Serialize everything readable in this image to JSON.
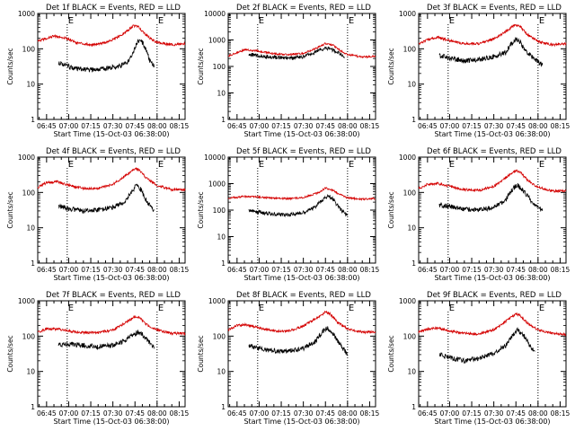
{
  "colors": {
    "events": "#000000",
    "lld": "#d40000",
    "axis": "#000000",
    "background": "#ffffff"
  },
  "chart_data": [
    {
      "type": "line",
      "title": "Det 1f BLACK = Events, RED = LLD",
      "xlabel": "Start Time (15-Oct-03 06:38:00)",
      "ylabel": "Counts/sec",
      "xlim": [
        "06:39",
        "08:19"
      ],
      "ylim": [
        1,
        1000
      ],
      "y_scale": "log",
      "x_ticks": [
        "06:45",
        "07:00",
        "07:15",
        "07:30",
        "07:45",
        "08:00",
        "08:15"
      ],
      "y_ticks": [
        "1",
        "10",
        "100",
        "1000"
      ],
      "markers": [
        {
          "label": "E",
          "at": "06:59",
          "style": "dotted"
        },
        {
          "label": "E",
          "at": "08:00",
          "style": "dotted"
        }
      ],
      "series": [
        {
          "name": "Events",
          "x": [
            "06:53",
            "07:00",
            "07:05",
            "07:15",
            "07:25",
            "07:30",
            "07:35",
            "07:40",
            "07:43",
            "07:45",
            "07:47",
            "07:50",
            "07:53",
            "07:55",
            "07:58"
          ],
          "y": [
            42,
            32,
            27,
            25,
            28,
            30,
            33,
            42,
            70,
            110,
            170,
            150,
            90,
            45,
            35
          ]
        },
        {
          "name": "LLD",
          "x": [
            "06:39",
            "06:45",
            "06:50",
            "07:00",
            "07:05",
            "07:15",
            "07:25",
            "07:30",
            "07:35",
            "07:40",
            "07:44",
            "07:47",
            "07:50",
            "07:55",
            "08:00",
            "08:10",
            "08:19"
          ],
          "y": [
            160,
            200,
            230,
            190,
            150,
            130,
            150,
            180,
            230,
            330,
            450,
            430,
            320,
            200,
            150,
            130,
            140
          ]
        }
      ]
    },
    {
      "type": "line",
      "title": "Det 2f BLACK = Events, RED = LLD",
      "xlabel": "Start Time (15-Oct-03 06:38:00)",
      "ylabel": "Counts/sec",
      "xlim": [
        "06:39",
        "08:19"
      ],
      "ylim": [
        1,
        10000
      ],
      "y_scale": "log",
      "x_ticks": [
        "06:45",
        "07:00",
        "07:15",
        "07:30",
        "07:45",
        "08:00",
        "08:15"
      ],
      "y_ticks": [
        "1",
        "10",
        "100",
        "1000",
        "10000"
      ],
      "markers": [
        {
          "label": "E",
          "at": "06:59",
          "style": "dotted"
        },
        {
          "label": "E",
          "at": "08:00",
          "style": "dotted"
        }
      ],
      "series": [
        {
          "name": "Events",
          "x": [
            "06:53",
            "07:00",
            "07:10",
            "07:20",
            "07:30",
            "07:40",
            "07:45",
            "07:50",
            "07:55",
            "07:58"
          ],
          "y": [
            290,
            250,
            220,
            200,
            230,
            380,
            500,
            420,
            290,
            240
          ]
        },
        {
          "name": "LLD",
          "x": [
            "06:39",
            "06:50",
            "07:00",
            "07:10",
            "07:20",
            "07:30",
            "07:40",
            "07:45",
            "07:50",
            "07:55",
            "08:00",
            "08:10",
            "08:19"
          ],
          "y": [
            240,
            430,
            380,
            300,
            280,
            310,
            520,
            740,
            650,
            400,
            280,
            230,
            240
          ]
        }
      ]
    },
    {
      "type": "line",
      "title": "Det 3f BLACK = Events, RED = LLD",
      "xlabel": "Start Time (15-Oct-03 06:38:00)",
      "ylabel": "Counts/sec",
      "xlim": [
        "06:39",
        "08:19"
      ],
      "ylim": [
        1,
        1000
      ],
      "y_scale": "log",
      "x_ticks": [
        "06:45",
        "07:00",
        "07:15",
        "07:30",
        "07:45",
        "08:00",
        "08:15"
      ],
      "y_ticks": [
        "1",
        "10",
        "100",
        "1000"
      ],
      "markers": [
        {
          "label": "E",
          "at": "06:59",
          "style": "dotted"
        },
        {
          "label": "E",
          "at": "08:00",
          "style": "dotted"
        }
      ],
      "series": [
        {
          "name": "Events",
          "x": [
            "06:53",
            "07:00",
            "07:10",
            "07:20",
            "07:30",
            "07:38",
            "07:42",
            "07:45",
            "07:48",
            "07:52",
            "07:58",
            "08:03"
          ],
          "y": [
            65,
            55,
            45,
            50,
            60,
            80,
            140,
            190,
            150,
            80,
            50,
            35
          ]
        },
        {
          "name": "LLD",
          "x": [
            "06:39",
            "06:45",
            "06:52",
            "07:00",
            "07:10",
            "07:20",
            "07:30",
            "07:38",
            "07:44",
            "07:48",
            "07:53",
            "08:00",
            "08:10",
            "08:19"
          ],
          "y": [
            140,
            180,
            210,
            170,
            140,
            140,
            190,
            300,
            470,
            420,
            250,
            160,
            130,
            140
          ]
        }
      ]
    },
    {
      "type": "line",
      "title": "Det 4f BLACK = Events, RED = LLD",
      "xlabel": "Start Time (15-Oct-03 06:38:00)",
      "ylabel": "Counts/sec",
      "xlim": [
        "06:39",
        "08:19"
      ],
      "ylim": [
        1,
        1000
      ],
      "y_scale": "log",
      "x_ticks": [
        "06:45",
        "07:00",
        "07:15",
        "07:30",
        "07:45",
        "08:00",
        "08:15"
      ],
      "y_ticks": [
        "1",
        "10",
        "100",
        "1000"
      ],
      "markers": [
        {
          "label": "E",
          "at": "06:59",
          "style": "dotted"
        },
        {
          "label": "E",
          "at": "08:00",
          "style": "dotted"
        }
      ],
      "series": [
        {
          "name": "Events",
          "x": [
            "06:53",
            "07:00",
            "07:10",
            "07:20",
            "07:30",
            "07:38",
            "07:43",
            "07:46",
            "07:49",
            "07:53",
            "07:58"
          ],
          "y": [
            42,
            35,
            30,
            32,
            38,
            55,
            110,
            160,
            120,
            55,
            30
          ]
        },
        {
          "name": "LLD",
          "x": [
            "06:39",
            "06:45",
            "06:52",
            "07:00",
            "07:10",
            "07:20",
            "07:30",
            "07:40",
            "07:45",
            "07:48",
            "07:53",
            "08:00",
            "08:10",
            "08:19"
          ],
          "y": [
            140,
            190,
            200,
            160,
            130,
            130,
            170,
            330,
            480,
            430,
            250,
            160,
            120,
            120
          ]
        }
      ]
    },
    {
      "type": "line",
      "title": "Det 5f BLACK = Events, RED = LLD",
      "xlabel": "Start Time (15-Oct-03 06:38:00)",
      "ylabel": "Counts/sec",
      "xlim": [
        "06:39",
        "08:19"
      ],
      "ylim": [
        1,
        10000
      ],
      "y_scale": "log",
      "x_ticks": [
        "06:45",
        "07:00",
        "07:15",
        "07:30",
        "07:45",
        "08:00",
        "08:15"
      ],
      "y_ticks": [
        "1",
        "10",
        "100",
        "1000",
        "10000"
      ],
      "markers": [
        {
          "label": "E",
          "at": "06:59",
          "style": "dotted"
        },
        {
          "label": "E",
          "at": "08:00",
          "style": "dotted"
        }
      ],
      "series": [
        {
          "name": "Events",
          "x": [
            "06:53",
            "07:00",
            "07:10",
            "07:20",
            "07:30",
            "07:38",
            "07:43",
            "07:47",
            "07:50",
            "07:55",
            "08:00"
          ],
          "y": [
            95,
            85,
            70,
            65,
            80,
            130,
            250,
            330,
            260,
            110,
            60
          ]
        },
        {
          "name": "LLD",
          "x": [
            "06:39",
            "06:50",
            "07:00",
            "07:10",
            "07:20",
            "07:30",
            "07:40",
            "07:45",
            "07:50",
            "07:55",
            "08:00",
            "08:10",
            "08:19"
          ],
          "y": [
            280,
            330,
            310,
            280,
            270,
            300,
            450,
            680,
            560,
            380,
            290,
            260,
            270
          ]
        }
      ]
    },
    {
      "type": "line",
      "title": "Det 6f BLACK = Events, RED = LLD",
      "xlabel": "Start Time (15-Oct-03 06:38:00)",
      "ylabel": "Counts/sec",
      "xlim": [
        "06:39",
        "08:19"
      ],
      "ylim": [
        1,
        1000
      ],
      "y_scale": "log",
      "x_ticks": [
        "06:45",
        "07:00",
        "07:15",
        "07:30",
        "07:45",
        "08:00",
        "08:15"
      ],
      "y_ticks": [
        "1",
        "10",
        "100",
        "1000"
      ],
      "markers": [
        {
          "label": "E",
          "at": "06:59",
          "style": "dotted"
        },
        {
          "label": "E",
          "at": "08:00",
          "style": "dotted"
        }
      ],
      "series": [
        {
          "name": "Events",
          "x": [
            "06:53",
            "07:00",
            "07:10",
            "07:20",
            "07:30",
            "07:38",
            "07:43",
            "07:46",
            "07:50",
            "07:55",
            "08:00",
            "08:03"
          ],
          "y": [
            45,
            40,
            33,
            32,
            38,
            60,
            130,
            160,
            110,
            60,
            40,
            30
          ]
        },
        {
          "name": "LLD",
          "x": [
            "06:39",
            "06:45",
            "06:52",
            "07:00",
            "07:10",
            "07:20",
            "07:30",
            "07:40",
            "07:45",
            "07:48",
            "07:53",
            "08:00",
            "08:10",
            "08:19"
          ],
          "y": [
            130,
            170,
            180,
            150,
            120,
            115,
            150,
            300,
            420,
            370,
            220,
            140,
            110,
            110
          ]
        }
      ]
    },
    {
      "type": "line",
      "title": "Det 7f BLACK = Events, RED = LLD",
      "xlabel": "Start Time (15-Oct-03 06:38:00)",
      "ylabel": "Counts/sec",
      "xlim": [
        "06:39",
        "08:19"
      ],
      "ylim": [
        1,
        1000
      ],
      "y_scale": "log",
      "x_ticks": [
        "06:45",
        "07:00",
        "07:15",
        "07:30",
        "07:45",
        "08:00",
        "08:15"
      ],
      "y_ticks": [
        "1",
        "10",
        "100",
        "1000"
      ],
      "markers": [
        {
          "label": "E",
          "at": "06:59",
          "style": "dotted"
        },
        {
          "label": "E",
          "at": "08:00",
          "style": "dotted"
        }
      ],
      "series": [
        {
          "name": "Events",
          "x": [
            "06:53",
            "07:00",
            "07:10",
            "07:20",
            "07:30",
            "07:38",
            "07:43",
            "07:47",
            "07:50",
            "07:55",
            "07:58"
          ],
          "y": [
            58,
            60,
            55,
            50,
            55,
            75,
            110,
            130,
            110,
            65,
            50
          ]
        },
        {
          "name": "LLD",
          "x": [
            "06:39",
            "06:45",
            "06:52",
            "07:00",
            "07:10",
            "07:20",
            "07:30",
            "07:40",
            "07:45",
            "07:48",
            "07:53",
            "08:00",
            "08:10",
            "08:19"
          ],
          "y": [
            130,
            160,
            160,
            140,
            125,
            125,
            150,
            260,
            360,
            330,
            210,
            150,
            120,
            120
          ]
        }
      ]
    },
    {
      "type": "line",
      "title": "Det 8f BLACK = Events, RED = LLD",
      "xlabel": "Start Time (15-Oct-03 06:38:00)",
      "ylabel": "Counts/sec",
      "xlim": [
        "06:39",
        "08:19"
      ],
      "ylim": [
        1,
        1000
      ],
      "y_scale": "log",
      "x_ticks": [
        "06:45",
        "07:00",
        "07:15",
        "07:30",
        "07:45",
        "08:00",
        "08:15"
      ],
      "y_ticks": [
        "1",
        "10",
        "100",
        "1000"
      ],
      "markers": [
        {
          "label": "E",
          "at": "06:59",
          "style": "dotted"
        },
        {
          "label": "E",
          "at": "08:00",
          "style": "dotted"
        }
      ],
      "series": [
        {
          "name": "Events",
          "x": [
            "06:53",
            "07:00",
            "07:10",
            "07:20",
            "07:30",
            "07:38",
            "07:43",
            "07:46",
            "07:50",
            "07:55",
            "08:00"
          ],
          "y": [
            55,
            45,
            38,
            38,
            45,
            70,
            130,
            170,
            120,
            55,
            30
          ]
        },
        {
          "name": "LLD",
          "x": [
            "06:39",
            "06:45",
            "06:52",
            "07:00",
            "07:10",
            "07:20",
            "07:30",
            "07:40",
            "07:45",
            "07:48",
            "07:53",
            "08:00",
            "08:10",
            "08:19"
          ],
          "y": [
            150,
            200,
            210,
            170,
            140,
            140,
            190,
            350,
            480,
            430,
            250,
            160,
            130,
            130
          ]
        }
      ]
    },
    {
      "type": "line",
      "title": "Det 9f BLACK = Events, RED = LLD",
      "xlabel": "Start Time (15-Oct-03 06:38:00)",
      "ylabel": "Counts/sec",
      "xlim": [
        "06:39",
        "08:19"
      ],
      "ylim": [
        1,
        1000
      ],
      "y_scale": "log",
      "x_ticks": [
        "06:45",
        "07:00",
        "07:15",
        "07:30",
        "07:45",
        "08:00",
        "08:15"
      ],
      "y_ticks": [
        "1",
        "10",
        "100",
        "1000"
      ],
      "markers": [
        {
          "label": "E",
          "at": "06:59",
          "style": "dotted"
        },
        {
          "label": "E",
          "at": "08:00",
          "style": "dotted"
        }
      ],
      "series": [
        {
          "name": "Events",
          "x": [
            "06:53",
            "07:00",
            "07:10",
            "07:20",
            "07:30",
            "07:38",
            "07:43",
            "07:46",
            "07:50",
            "07:55",
            "07:58"
          ],
          "y": [
            30,
            25,
            20,
            24,
            32,
            55,
            110,
            150,
            110,
            50,
            33
          ]
        },
        {
          "name": "LLD",
          "x": [
            "06:39",
            "06:45",
            "06:52",
            "07:00",
            "07:10",
            "07:20",
            "07:30",
            "07:40",
            "07:45",
            "07:48",
            "07:53",
            "08:00",
            "08:10",
            "08:19"
          ],
          "y": [
            130,
            160,
            170,
            140,
            120,
            115,
            150,
            300,
            430,
            380,
            230,
            150,
            120,
            110
          ]
        }
      ]
    }
  ]
}
